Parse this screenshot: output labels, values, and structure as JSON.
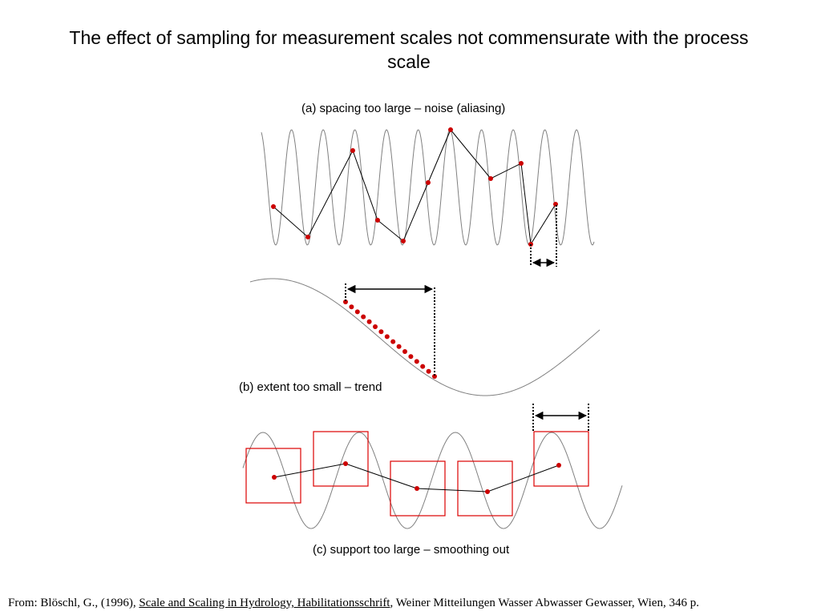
{
  "title": "The effect of sampling for measurement scales not commensurate with the process scale",
  "panels": {
    "a": {
      "caption": "(a) spacing too large – noise (aliasing)"
    },
    "b": {
      "caption": "(b) extent too small – trend"
    },
    "c": {
      "caption": "(c) support too large – smoothing out"
    }
  },
  "citation": {
    "prefix": "From:  Blöschl, G., (1996), ",
    "work": "Scale and Scaling in Hydrology, Habilitationsschrift",
    "suffix": ", Weiner Mitteilungen Wasser Abwasser Gewasser, Wien, 346 p."
  },
  "colors": {
    "curve": "#808080",
    "sample": "#cc0000",
    "line": "#000000",
    "box": "#dd0000"
  }
}
